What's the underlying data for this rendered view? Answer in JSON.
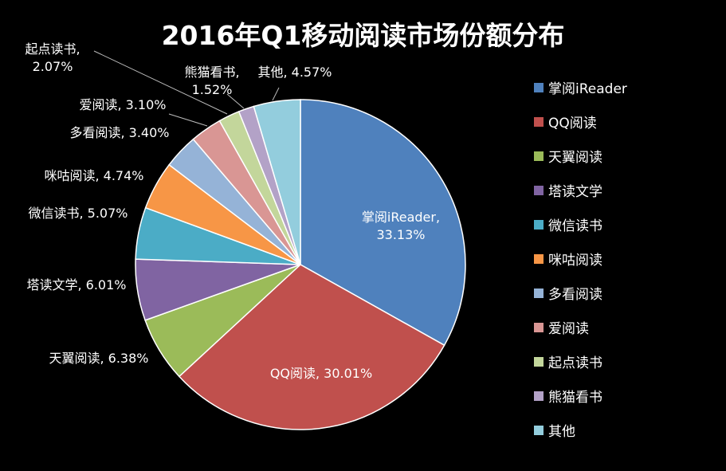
{
  "chart_data": {
    "type": "pie",
    "title": "2016年Q1移动阅读市场份额分布",
    "legend_position": "right",
    "slices": [
      {
        "name": "掌阅iReader",
        "value": 33.13,
        "label": "33.13%",
        "color": "#4F81BD"
      },
      {
        "name": "QQ阅读",
        "value": 30.01,
        "label": "30.01%",
        "color": "#C0504D"
      },
      {
        "name": "天翼阅读",
        "value": 6.38,
        "label": "6.38%",
        "color": "#9BBB59"
      },
      {
        "name": "塔读文学",
        "value": 6.01,
        "label": "6.01%",
        "color": "#8064A2"
      },
      {
        "name": "微信读书",
        "value": 5.07,
        "label": "5.07%",
        "color": "#4BACC6"
      },
      {
        "name": "咪咕阅读",
        "value": 4.74,
        "label": "4.74%",
        "color": "#F79646"
      },
      {
        "name": "多看阅读",
        "value": 3.4,
        "label": "3.40%",
        "color": "#95B3D7"
      },
      {
        "name": "爱阅读",
        "value": 3.1,
        "label": "3.10%",
        "color": "#D99694"
      },
      {
        "name": "起点读书",
        "value": 2.07,
        "label": "2.07%",
        "color": "#C3D69B"
      },
      {
        "name": "熊猫看书",
        "value": 1.52,
        "label": "1.52%",
        "color": "#B3A2C7"
      },
      {
        "name": "其他",
        "value": 4.57,
        "label": "4.57%",
        "color": "#93CDDD"
      }
    ]
  }
}
